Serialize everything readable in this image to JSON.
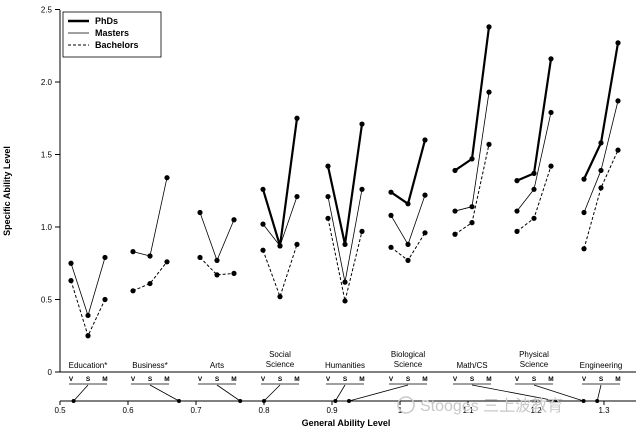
{
  "chart_data": {
    "type": "line",
    "ylabel": "Specific Ability Level",
    "xlabel": "General Ability Level",
    "ylim": [
      0,
      2.5
    ],
    "yticks": [
      "0",
      "0.5",
      "1.0",
      "1.5",
      "2.0",
      "2.5"
    ],
    "xticks": [
      "0.5",
      "0.6",
      "0.7",
      "0.8",
      "0.9",
      "1",
      "1.1",
      "1.2",
      "1.3"
    ],
    "sub_labels": [
      "V",
      "S",
      "M"
    ],
    "legend": {
      "position": "top-left",
      "entries": [
        "PhDs",
        "Masters",
        "Bachelors"
      ]
    },
    "series": [
      {
        "name": "PhDs",
        "style": "thick"
      },
      {
        "name": "Masters",
        "style": "thin"
      },
      {
        "name": "Bachelors",
        "style": "dashed"
      }
    ],
    "groups": [
      {
        "name": "Education*",
        "general": 0.52,
        "values": {
          "Masters": [
            0.75,
            0.39,
            0.79
          ],
          "Bachelors": [
            0.63,
            0.25,
            0.5
          ]
        }
      },
      {
        "name": "Business*",
        "general": 0.675,
        "values": {
          "Masters": [
            0.83,
            0.8,
            1.34
          ],
          "Bachelors": [
            0.56,
            0.61,
            0.76
          ]
        }
      },
      {
        "name": "Arts",
        "general": 0.765,
        "values": {
          "Masters": [
            1.1,
            0.77,
            1.05
          ],
          "Bachelors": [
            0.79,
            0.67,
            0.68
          ]
        }
      },
      {
        "name": "Social Science",
        "general": 0.8,
        "values": {
          "PhDs": [
            1.26,
            0.87,
            1.75
          ],
          "Masters": [
            1.02,
            0.87,
            1.21
          ],
          "Bachelors": [
            0.84,
            0.52,
            0.88
          ]
        }
      },
      {
        "name": "Humanities",
        "general": 0.905,
        "values": {
          "PhDs": [
            1.42,
            0.88,
            1.71
          ],
          "Masters": [
            1.21,
            0.62,
            1.26
          ],
          "Bachelors": [
            1.06,
            0.49,
            0.97
          ]
        }
      },
      {
        "name": "Biological Science",
        "general": 0.925,
        "values": {
          "PhDs": [
            1.24,
            1.16,
            1.6
          ],
          "Masters": [
            1.08,
            0.88,
            1.22
          ],
          "Bachelors": [
            0.86,
            0.77,
            0.96
          ]
        }
      },
      {
        "name": "Math/CS",
        "general": 1.23,
        "values": {
          "PhDs": [
            1.39,
            1.47,
            2.38
          ],
          "Masters": [
            1.11,
            1.14,
            1.93
          ],
          "Bachelors": [
            0.95,
            1.03,
            1.57
          ]
        }
      },
      {
        "name": "Physical Science",
        "general": 1.27,
        "values": {
          "PhDs": [
            1.32,
            1.37,
            2.16
          ],
          "Masters": [
            1.11,
            1.26,
            1.79
          ],
          "Bachelors": [
            0.97,
            1.06,
            1.42
          ]
        }
      },
      {
        "name": "Engineering",
        "general": 1.29,
        "values": {
          "PhDs": [
            1.33,
            1.58,
            2.27
          ],
          "Masters": [
            1.1,
            1.39,
            1.87
          ],
          "Bachelors": [
            0.85,
            1.27,
            1.53
          ]
        }
      }
    ]
  },
  "watermark": "Stooges 三上波教育"
}
